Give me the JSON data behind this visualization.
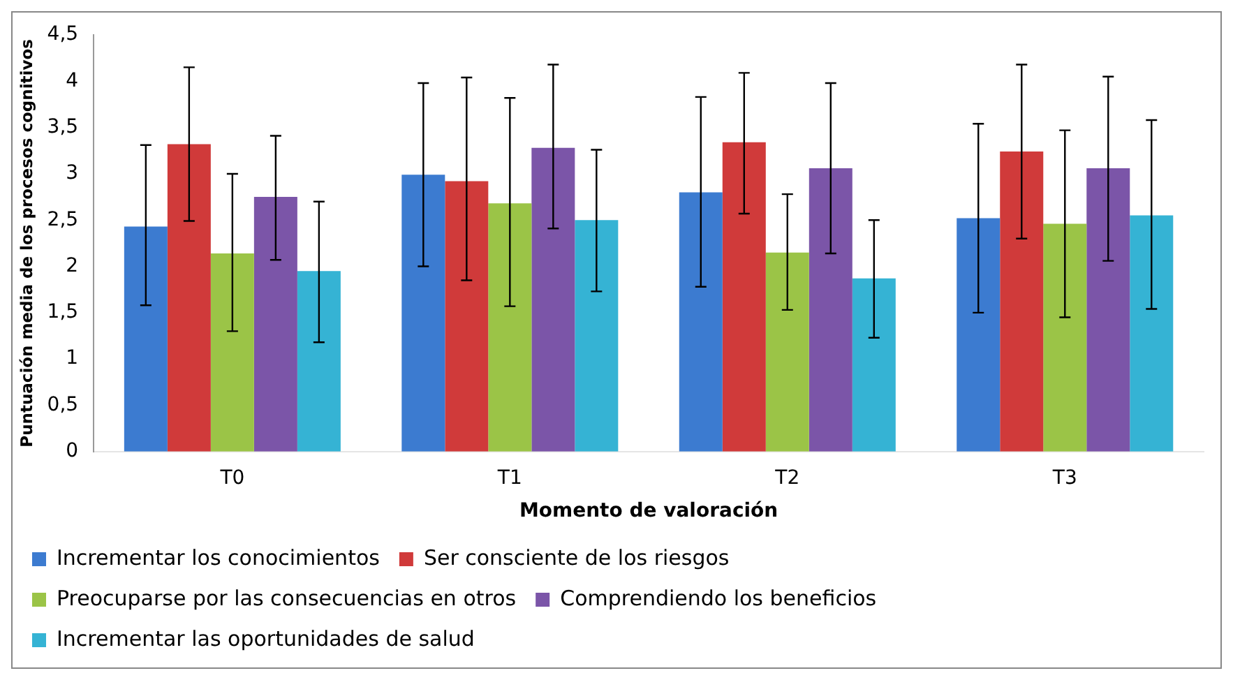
{
  "chart_data": {
    "type": "bar",
    "xlabel": "Momento de valoración",
    "ylabel": "Puntuación media de los procesos cognitivos",
    "categories": [
      "T0",
      "T1",
      "T2",
      "T3"
    ],
    "series": [
      {
        "name": "Incrementar los conocimientos",
        "color": "#3c7bd0",
        "values": [
          2.43,
          2.99,
          2.8,
          2.52
        ],
        "errors": [
          [
            1.58,
            3.31
          ],
          [
            2.0,
            3.98
          ],
          [
            1.78,
            3.83
          ],
          [
            1.5,
            3.54
          ]
        ]
      },
      {
        "name": "Ser consciente de los riesgos",
        "color": "#d03a3a",
        "values": [
          3.32,
          2.92,
          3.34,
          3.24
        ],
        "errors": [
          [
            2.49,
            4.15
          ],
          [
            1.85,
            4.04
          ],
          [
            2.57,
            4.09
          ],
          [
            2.3,
            4.18
          ]
        ]
      },
      {
        "name": "Preocuparse por las consecuencias en otros",
        "color": "#9bc447",
        "values": [
          2.14,
          2.68,
          2.15,
          2.46
        ],
        "errors": [
          [
            1.3,
            3.0
          ],
          [
            1.57,
            3.82
          ],
          [
            1.53,
            2.78
          ],
          [
            1.45,
            3.47
          ]
        ]
      },
      {
        "name": "Comprendiendo los beneficios",
        "color": "#7b55a8",
        "values": [
          2.75,
          3.28,
          3.06,
          3.06
        ],
        "errors": [
          [
            2.07,
            3.41
          ],
          [
            2.41,
            4.18
          ],
          [
            2.14,
            3.98
          ],
          [
            2.06,
            4.05
          ]
        ]
      },
      {
        "name": "Incrementar las oportunidades de salud",
        "color": "#35b3d4",
        "values": [
          1.95,
          2.5,
          1.87,
          2.55
        ],
        "errors": [
          [
            1.18,
            2.7
          ],
          [
            1.73,
            3.26
          ],
          [
            1.23,
            2.5
          ],
          [
            1.54,
            3.58
          ]
        ]
      }
    ],
    "ylim": [
      0,
      4.5
    ],
    "yticks": [
      0,
      {
        "value": 0.5,
        "label": "0,5"
      },
      1,
      {
        "value": 1.5,
        "label": "1,5"
      },
      2,
      {
        "value": 2.5,
        "label": "2,5"
      },
      3,
      {
        "value": 3.5,
        "label": "3,5"
      },
      4,
      {
        "value": 4.5,
        "label": "4,5"
      }
    ],
    "grid": false,
    "legend": "bottom"
  }
}
